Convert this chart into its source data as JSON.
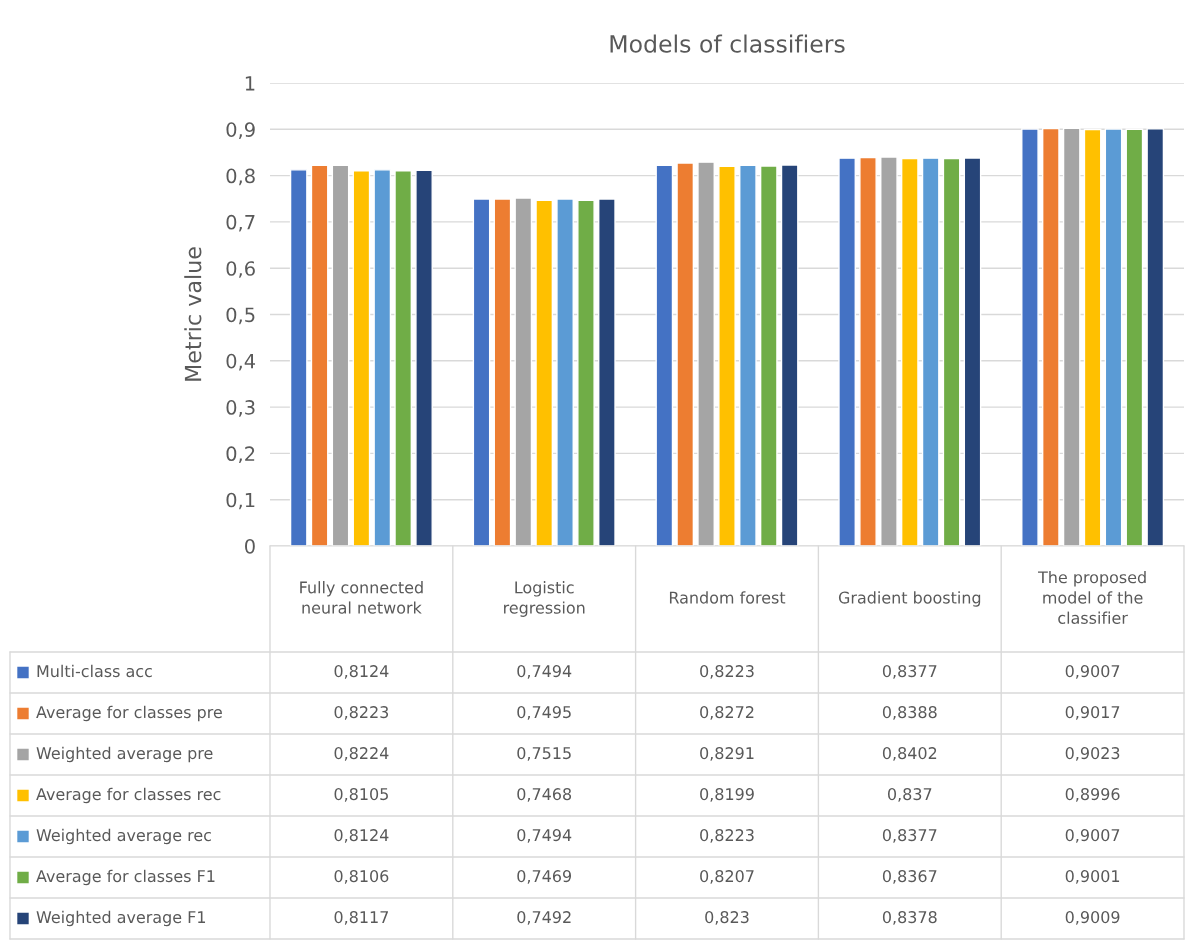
{
  "chart_data": {
    "type": "bar",
    "title": "Models of classifiers",
    "ylabel": "Metric value",
    "categories": [
      "Fully connected neural network",
      "Logistic regression",
      "Random forest",
      "Gradient boosting",
      "The proposed model of the classifier"
    ],
    "series": [
      {
        "name": "Multi-class acc",
        "color": "#4472c4",
        "values": [
          0.8124,
          0.7494,
          0.8223,
          0.8377,
          0.9007
        ],
        "value_labels": [
          "0,8124",
          "0,7494",
          "0,8223",
          "0,8377",
          "0,9007"
        ]
      },
      {
        "name": "Average for classes pre",
        "color": "#ed7d31",
        "values": [
          0.8223,
          0.7495,
          0.8272,
          0.8388,
          0.9017
        ],
        "value_labels": [
          "0,8223",
          "0,7495",
          "0,8272",
          "0,8388",
          "0,9017"
        ]
      },
      {
        "name": "Weighted average pre",
        "color": "#a5a5a5",
        "values": [
          0.8224,
          0.7515,
          0.8291,
          0.8402,
          0.9023
        ],
        "value_labels": [
          "0,8224",
          "0,7515",
          "0,8291",
          "0,8402",
          "0,9023"
        ]
      },
      {
        "name": "Average for classes rec",
        "color": "#ffc000",
        "values": [
          0.8105,
          0.7468,
          0.8199,
          0.837,
          0.8996
        ],
        "value_labels": [
          "0,8105",
          "0,7468",
          "0,8199",
          "0,837",
          "0,8996"
        ]
      },
      {
        "name": "Weighted average rec",
        "color": "#5b9bd5",
        "values": [
          0.8124,
          0.7494,
          0.8223,
          0.8377,
          0.9007
        ],
        "value_labels": [
          "0,8124",
          "0,7494",
          "0,8223",
          "0,8377",
          "0,9007"
        ]
      },
      {
        "name": "Average for classes F1",
        "color": "#70ad47",
        "values": [
          0.8106,
          0.7469,
          0.8207,
          0.8367,
          0.9001
        ],
        "value_labels": [
          "0,8106",
          "0,7469",
          "0,8207",
          "0,8367",
          "0,9001"
        ]
      },
      {
        "name": "Weighted average F1",
        "color": "#264478",
        "values": [
          0.8117,
          0.7492,
          0.823,
          0.8378,
          0.9009
        ],
        "value_labels": [
          "0,8117",
          "0,7492",
          "0,823",
          "0,8378",
          "0,9009"
        ]
      }
    ],
    "ylim": [
      0,
      1
    ],
    "yticks": [
      0,
      {
        "value": 0.1,
        "label": "0,1"
      },
      {
        "value": 0.2,
        "label": "0,2"
      },
      {
        "value": 0.3,
        "label": "0,3"
      },
      {
        "value": 0.4,
        "label": "0,4"
      },
      {
        "value": 0.5,
        "label": "0,5"
      },
      {
        "value": 0.6,
        "label": "0,6"
      },
      {
        "value": 0.7,
        "label": "0,7"
      },
      {
        "value": 0.8,
        "label": "0,8"
      },
      {
        "value": 0.9,
        "label": "0,9"
      },
      1
    ],
    "grid": "y",
    "legend": "bottom"
  }
}
